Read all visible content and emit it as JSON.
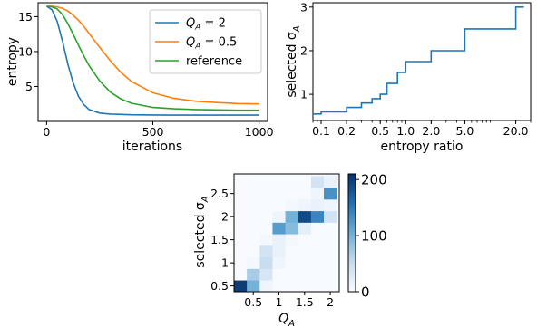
{
  "chart_data": [
    {
      "type": "line",
      "xlabel": "iterations",
      "ylabel": "entropy",
      "xlim": [
        -40,
        1040
      ],
      "ylim": [
        0,
        17
      ],
      "xticks": [
        "0",
        "500",
        "1000"
      ],
      "yticks": [
        "5",
        "10",
        "15"
      ],
      "legend_position": "top-right",
      "x": [
        0,
        25,
        50,
        75,
        100,
        125,
        150,
        175,
        200,
        250,
        300,
        350,
        400,
        500,
        600,
        700,
        800,
        900,
        1000
      ],
      "series": [
        {
          "name": "Q_A = 2",
          "color": "#1f77b4",
          "values": [
            16.5,
            16.0,
            14.3,
            11.5,
            8.2,
            5.5,
            3.6,
            2.4,
            1.7,
            1.2,
            1.05,
            1.0,
            0.95,
            0.92,
            0.9,
            0.9,
            0.9,
            0.9,
            0.9
          ]
        },
        {
          "name": "Q_A = 0.5",
          "color": "#ff7f0e",
          "values": [
            16.5,
            16.5,
            16.4,
            16.2,
            15.8,
            15.2,
            14.5,
            13.6,
            12.6,
            10.6,
            8.7,
            7.0,
            5.7,
            4.1,
            3.3,
            2.9,
            2.7,
            2.55,
            2.5
          ]
        },
        {
          "name": "reference",
          "color": "#2ca02c",
          "values": [
            16.5,
            16.4,
            16.1,
            15.3,
            14.0,
            12.5,
            10.9,
            9.4,
            8.0,
            5.8,
            4.2,
            3.2,
            2.6,
            2.0,
            1.8,
            1.7,
            1.65,
            1.6,
            1.6
          ]
        }
      ]
    },
    {
      "type": "line",
      "xlabel": "entropy ratio",
      "ylabel": "selected σ_A",
      "xscale": "log",
      "xlim": [
        0.08,
        30
      ],
      "ylim": [
        0.4,
        3.1
      ],
      "xticks": [
        "0.1",
        "0.2",
        "0.5",
        "1.0",
        "2.0",
        "5.0",
        "20.0"
      ],
      "yticks": [
        "1",
        "2",
        "3"
      ],
      "series": [
        {
          "color": "#1f77b4",
          "step": "post",
          "x": [
            0.08,
            0.1,
            0.2,
            0.3,
            0.4,
            0.5,
            0.6,
            0.8,
            1.0,
            2.0,
            5.0,
            20.0,
            25.0
          ],
          "values": [
            0.55,
            0.6,
            0.7,
            0.8,
            0.9,
            1.0,
            1.25,
            1.5,
            1.75,
            2.0,
            2.5,
            3.0,
            3.0
          ]
        }
      ]
    },
    {
      "type": "heatmap",
      "xlabel": "Q_A",
      "ylabel": "selected σ_A",
      "xticks": [
        "0.5",
        "1",
        "1.5",
        "2"
      ],
      "yticks": [
        "0.5",
        "1",
        "1.5",
        "2",
        "2.5"
      ],
      "x": [
        0.25,
        0.5,
        0.75,
        1.0,
        1.25,
        1.5,
        1.75,
        2.0
      ],
      "y": [
        0.5,
        0.75,
        1.0,
        1.25,
        1.5,
        1.75,
        2.0,
        2.25,
        2.5,
        2.75
      ],
      "colorbar_ticks": [
        "0",
        "100",
        "200"
      ],
      "vmin": 0,
      "vmax": 210,
      "colormap": "Blues",
      "values": [
        [
          200,
          100,
          10,
          0,
          0,
          0,
          0,
          0
        ],
        [
          0,
          70,
          35,
          0,
          0,
          0,
          0,
          0
        ],
        [
          0,
          5,
          50,
          10,
          0,
          0,
          0,
          0
        ],
        [
          0,
          0,
          40,
          15,
          0,
          0,
          0,
          0
        ],
        [
          0,
          0,
          5,
          15,
          5,
          0,
          0,
          0
        ],
        [
          0,
          0,
          0,
          120,
          90,
          20,
          0,
          0
        ],
        [
          0,
          0,
          0,
          10,
          100,
          190,
          140,
          40
        ],
        [
          0,
          0,
          0,
          0,
          5,
          10,
          15,
          10
        ],
        [
          0,
          0,
          0,
          0,
          0,
          0,
          10,
          130
        ],
        [
          0,
          0,
          0,
          0,
          0,
          0,
          40,
          15
        ]
      ]
    }
  ]
}
